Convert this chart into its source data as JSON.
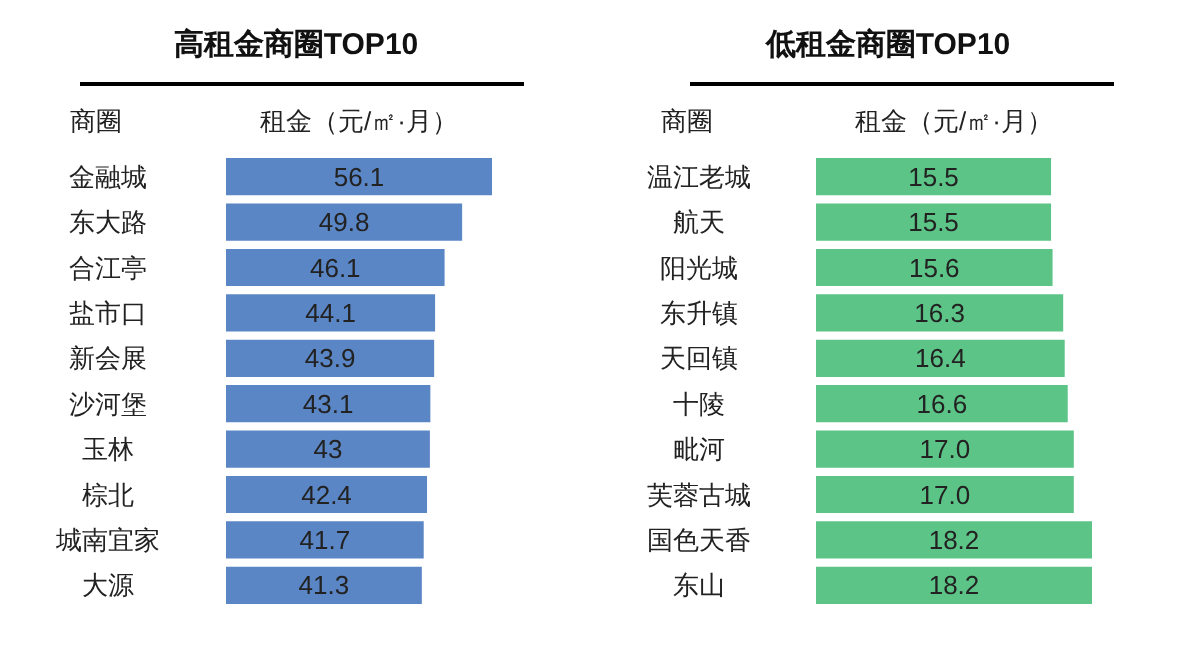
{
  "chart_data": [
    {
      "type": "bar",
      "orientation": "horizontal",
      "title": "高租金商圈TOP10",
      "ylabel": "商圈",
      "xlabel": "租金（元/㎡·月）",
      "categories": [
        "金融城",
        "东大路",
        "合江亭",
        "盐市口",
        "新会展",
        "沙河堡",
        "玉林",
        "棕北",
        "城南宜家",
        "大源"
      ],
      "series": [
        {
          "color": "#5b86c5",
          "values": [
            56.1,
            49.8,
            46.1,
            44.1,
            43.9,
            43.1,
            43,
            42.4,
            41.7,
            41.3
          ],
          "value_labels": [
            "56.1",
            "49.8",
            "46.1",
            "44.1",
            "43.9",
            "43.1",
            "43",
            "42.4",
            "41.7",
            "41.3"
          ]
        }
      ],
      "grid": false
    },
    {
      "type": "bar",
      "orientation": "horizontal",
      "title": "低租金商圈TOP10",
      "ylabel": "商圈",
      "xlabel": "租金（元/㎡·月）",
      "categories": [
        "温江老城",
        "航天",
        "阳光城",
        "东升镇",
        "天回镇",
        "十陵",
        "毗河",
        "芙蓉古城",
        "国色天香",
        "东山"
      ],
      "series": [
        {
          "color": "#5cc487",
          "values": [
            15.5,
            15.5,
            15.6,
            16.3,
            16.4,
            16.6,
            17,
            17,
            18.2,
            18.2
          ],
          "value_labels": [
            "15.5",
            "15.5",
            "15.6",
            "16.3",
            "16.4",
            "16.6",
            "17.0",
            "17.0",
            "18.2",
            "18.2"
          ]
        }
      ],
      "grid": false
    }
  ]
}
